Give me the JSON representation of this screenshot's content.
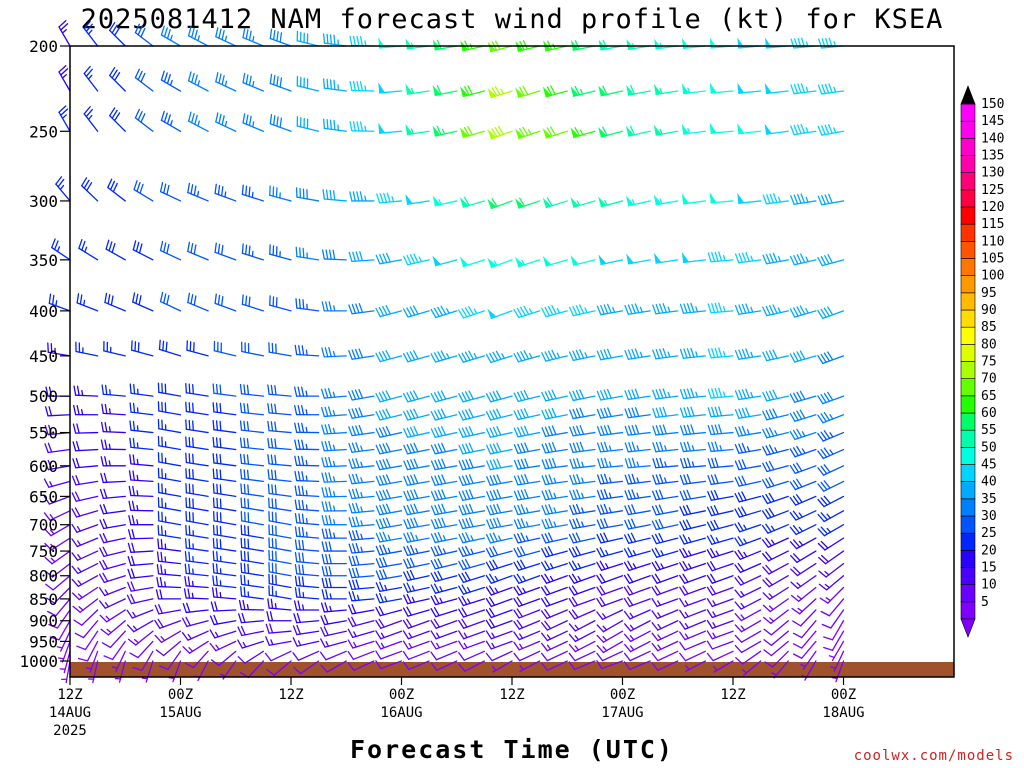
{
  "chart_data": {
    "type": "wind_barb_time_height",
    "title": "2025081412 NAM forecast wind profile (kt) for KSEA",
    "xlabel": "Forecast Time (UTC)",
    "credit": "coolwx.com/models",
    "y_axis": {
      "scale": "log",
      "inverted": true,
      "range": [
        200,
        1000
      ],
      "ticks": [
        200,
        250,
        300,
        350,
        400,
        450,
        500,
        550,
        600,
        650,
        700,
        750,
        800,
        850,
        900,
        950,
        1000
      ]
    },
    "x_axis": {
      "range_hours": [
        0,
        96
      ],
      "step_hours": 3,
      "ticks": [
        {
          "hour": 0,
          "lines": [
            "12Z",
            "14AUG",
            "2025"
          ]
        },
        {
          "hour": 12,
          "lines": [
            "00Z",
            "15AUG"
          ]
        },
        {
          "hour": 24,
          "lines": [
            "12Z"
          ]
        },
        {
          "hour": 36,
          "lines": [
            "00Z",
            "16AUG"
          ]
        },
        {
          "hour": 48,
          "lines": [
            "12Z"
          ]
        },
        {
          "hour": 60,
          "lines": [
            "00Z",
            "17AUG"
          ]
        },
        {
          "hour": 72,
          "lines": [
            "12Z"
          ]
        },
        {
          "hour": 84,
          "lines": [
            "00Z",
            "18AUG"
          ]
        }
      ]
    },
    "colorbar": {
      "unit": "kt",
      "levels": [
        5,
        10,
        15,
        20,
        25,
        30,
        35,
        40,
        45,
        50,
        55,
        60,
        65,
        70,
        75,
        80,
        85,
        90,
        95,
        100,
        105,
        110,
        115,
        120,
        125,
        130,
        135,
        140,
        145,
        150
      ],
      "colors": [
        "#8000ff",
        "#6a00ff",
        "#4b00ff",
        "#2a00ff",
        "#0026ff",
        "#0055ff",
        "#0080ff",
        "#00aaff",
        "#00d4ff",
        "#00ffe0",
        "#00ffaa",
        "#00ff66",
        "#22ff00",
        "#66ff00",
        "#aaff00",
        "#ddff00",
        "#ffff00",
        "#ffdd00",
        "#ffbb00",
        "#ff9900",
        "#ff7700",
        "#ff5500",
        "#ff3300",
        "#ff0000",
        "#ff0044",
        "#ff0077",
        "#ff00aa",
        "#ff00cc",
        "#ff00ee",
        "#ff00ff"
      ]
    },
    "surface_color": "#a0522d",
    "surface_pressure": 1010,
    "levels_hpa": [
      1000,
      975,
      950,
      925,
      900,
      875,
      850,
      825,
      800,
      775,
      750,
      725,
      700,
      675,
      650,
      625,
      600,
      575,
      550,
      525,
      500,
      450,
      400,
      350,
      300,
      250,
      225,
      200
    ],
    "times_hours": [
      0,
      3,
      6,
      9,
      12,
      15,
      18,
      21,
      24,
      27,
      30,
      33,
      36,
      39,
      42,
      45,
      48,
      51,
      54,
      57,
      60,
      63,
      66,
      69,
      72,
      75,
      78,
      81,
      84
    ],
    "wind_keyframes": [
      {
        "p": 1000,
        "d": [
          [
            0,
            190,
            5
          ],
          [
            12,
            200,
            6
          ],
          [
            24,
            230,
            8
          ],
          [
            36,
            250,
            9
          ],
          [
            48,
            240,
            7
          ],
          [
            60,
            250,
            8
          ],
          [
            72,
            240,
            7
          ],
          [
            84,
            200,
            5
          ]
        ]
      },
      {
        "p": 950,
        "d": [
          [
            0,
            200,
            6
          ],
          [
            12,
            230,
            12
          ],
          [
            24,
            260,
            17
          ],
          [
            36,
            250,
            14
          ],
          [
            48,
            250,
            15
          ],
          [
            60,
            240,
            13
          ],
          [
            72,
            250,
            12
          ],
          [
            84,
            210,
            7
          ]
        ]
      },
      {
        "p": 900,
        "d": [
          [
            0,
            210,
            8
          ],
          [
            12,
            250,
            18
          ],
          [
            24,
            270,
            22
          ],
          [
            36,
            250,
            18
          ],
          [
            48,
            250,
            20
          ],
          [
            60,
            240,
            16
          ],
          [
            72,
            250,
            15
          ],
          [
            84,
            210,
            9
          ]
        ]
      },
      {
        "p": 850,
        "d": [
          [
            0,
            220,
            10
          ],
          [
            12,
            270,
            22
          ],
          [
            24,
            280,
            27
          ],
          [
            36,
            260,
            25
          ],
          [
            48,
            250,
            22
          ],
          [
            60,
            250,
            18
          ],
          [
            72,
            250,
            16
          ],
          [
            84,
            220,
            12
          ]
        ]
      },
      {
        "p": 800,
        "d": [
          [
            0,
            230,
            12
          ],
          [
            12,
            275,
            24
          ],
          [
            24,
            280,
            30
          ],
          [
            36,
            260,
            30
          ],
          [
            48,
            250,
            27
          ],
          [
            60,
            250,
            22
          ],
          [
            72,
            250,
            20
          ],
          [
            84,
            230,
            15
          ]
        ]
      },
      {
        "p": 700,
        "d": [
          [
            0,
            240,
            14
          ],
          [
            12,
            280,
            26
          ],
          [
            24,
            280,
            32
          ],
          [
            36,
            260,
            38
          ],
          [
            48,
            260,
            38
          ],
          [
            60,
            260,
            32
          ],
          [
            72,
            255,
            28
          ],
          [
            84,
            240,
            25
          ]
        ]
      },
      {
        "p": 600,
        "d": [
          [
            0,
            260,
            18
          ],
          [
            12,
            280,
            27
          ],
          [
            24,
            275,
            32
          ],
          [
            36,
            260,
            38
          ],
          [
            48,
            260,
            40
          ],
          [
            60,
            265,
            36
          ],
          [
            72,
            265,
            32
          ],
          [
            84,
            245,
            32
          ]
        ]
      },
      {
        "p": 500,
        "d": [
          [
            0,
            270,
            22
          ],
          [
            12,
            280,
            28
          ],
          [
            24,
            275,
            32
          ],
          [
            36,
            255,
            42
          ],
          [
            48,
            255,
            42
          ],
          [
            60,
            260,
            40
          ],
          [
            72,
            265,
            45
          ],
          [
            84,
            250,
            38
          ]
        ]
      },
      {
        "p": 400,
        "d": [
          [
            0,
            290,
            26
          ],
          [
            12,
            295,
            30
          ],
          [
            24,
            285,
            32
          ],
          [
            36,
            255,
            40
          ],
          [
            48,
            250,
            48
          ],
          [
            60,
            260,
            44
          ],
          [
            72,
            265,
            45
          ],
          [
            84,
            250,
            42
          ]
        ]
      },
      {
        "p": 300,
        "d": [
          [
            0,
            320,
            26
          ],
          [
            12,
            295,
            32
          ],
          [
            24,
            285,
            35
          ],
          [
            36,
            265,
            45
          ],
          [
            48,
            250,
            62
          ],
          [
            60,
            255,
            55
          ],
          [
            72,
            265,
            50
          ],
          [
            84,
            260,
            42
          ]
        ]
      },
      {
        "p": 250,
        "d": [
          [
            0,
            330,
            25
          ],
          [
            12,
            300,
            34
          ],
          [
            24,
            290,
            38
          ],
          [
            36,
            265,
            48
          ],
          [
            48,
            250,
            78
          ],
          [
            60,
            255,
            62
          ],
          [
            72,
            265,
            52
          ],
          [
            84,
            260,
            45
          ]
        ]
      },
      {
        "p": 200,
        "d": [
          [
            0,
            330,
            24
          ],
          [
            12,
            300,
            35
          ],
          [
            24,
            290,
            38
          ],
          [
            36,
            265,
            50
          ],
          [
            48,
            255,
            72
          ],
          [
            60,
            260,
            58
          ],
          [
            72,
            265,
            50
          ],
          [
            84,
            265,
            46
          ]
        ]
      }
    ]
  }
}
